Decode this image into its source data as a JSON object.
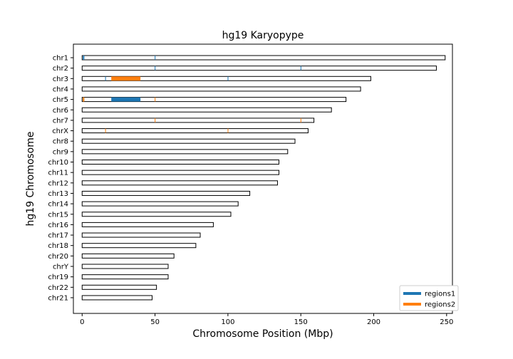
{
  "chart_data": {
    "type": "bar",
    "title": "hg19 Karyopype",
    "xlabel": "Chromosome Position (Mbp)",
    "ylabel": "hg19 Chromosome",
    "xlim": [
      -6,
      254
    ],
    "xticks": [
      0,
      50,
      100,
      150,
      200,
      250
    ],
    "grid": false,
    "legend_position": "bottom-right",
    "chromosomes": [
      {
        "name": "chr1",
        "length": 249
      },
      {
        "name": "chr2",
        "length": 243
      },
      {
        "name": "chr3",
        "length": 198
      },
      {
        "name": "chr4",
        "length": 191
      },
      {
        "name": "chr5",
        "length": 181
      },
      {
        "name": "chr6",
        "length": 171
      },
      {
        "name": "chr7",
        "length": 159
      },
      {
        "name": "chrX",
        "length": 155
      },
      {
        "name": "chr8",
        "length": 146
      },
      {
        "name": "chr9",
        "length": 141
      },
      {
        "name": "chr10",
        "length": 135
      },
      {
        "name": "chr11",
        "length": 135
      },
      {
        "name": "chr12",
        "length": 134
      },
      {
        "name": "chr13",
        "length": 115
      },
      {
        "name": "chr14",
        "length": 107
      },
      {
        "name": "chr15",
        "length": 102
      },
      {
        "name": "chr16",
        "length": 90
      },
      {
        "name": "chr17",
        "length": 81
      },
      {
        "name": "chr18",
        "length": 78
      },
      {
        "name": "chr20",
        "length": 63
      },
      {
        "name": "chrY",
        "length": 59
      },
      {
        "name": "chr19",
        "length": 59
      },
      {
        "name": "chr22",
        "length": 51
      },
      {
        "name": "chr21",
        "length": 48
      }
    ],
    "series": [
      {
        "name": "regions1",
        "color": "#1f77b4",
        "regions": [
          {
            "chrom": "chr1",
            "start": 0.5,
            "end": 1.5
          },
          {
            "chrom": "chr1",
            "start": 49.8,
            "end": 50.3
          },
          {
            "chrom": "chr2",
            "start": 49.8,
            "end": 50.3
          },
          {
            "chrom": "chr2",
            "start": 149.8,
            "end": 150.3
          },
          {
            "chrom": "chr3",
            "start": 15.8,
            "end": 16.3
          },
          {
            "chrom": "chr3",
            "start": 99.8,
            "end": 100.3
          },
          {
            "chrom": "chr5",
            "start": 20,
            "end": 40
          }
        ]
      },
      {
        "name": "regions2",
        "color": "#ff7f0e",
        "regions": [
          {
            "chrom": "chr3",
            "start": 20,
            "end": 40
          },
          {
            "chrom": "chr5",
            "start": 0.5,
            "end": 1.5
          },
          {
            "chrom": "chr5",
            "start": 49.8,
            "end": 50.3
          },
          {
            "chrom": "chr7",
            "start": 49.8,
            "end": 50.3
          },
          {
            "chrom": "chr7",
            "start": 149.8,
            "end": 150.3
          },
          {
            "chrom": "chrX",
            "start": 15.8,
            "end": 16.3
          },
          {
            "chrom": "chrX",
            "start": 99.8,
            "end": 100.3
          }
        ]
      }
    ]
  }
}
